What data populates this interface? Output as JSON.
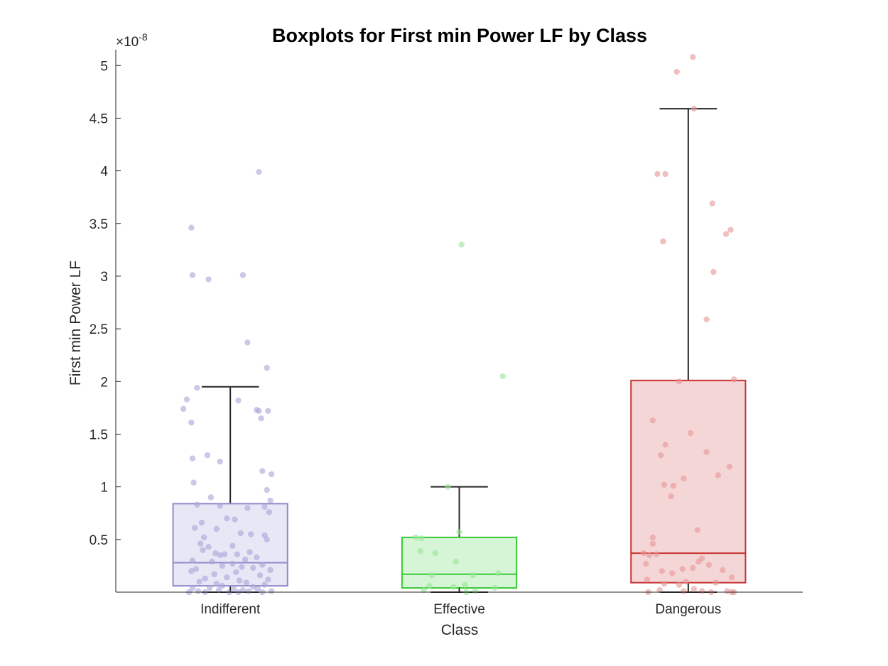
{
  "chart_data": {
    "type": "box",
    "title": "Boxplots for First min Power LF by Class",
    "xlabel": "Class",
    "ylabel": "First min Power LF",
    "y_exponent_prefix": "×10",
    "y_exponent": "-8",
    "ylim": [
      0,
      5.15
    ],
    "yticks": [
      {
        "value": 0.5,
        "label": "0.5"
      },
      {
        "value": 1,
        "label": "1"
      },
      {
        "value": 1.5,
        "label": "1.5"
      },
      {
        "value": 2,
        "label": "2"
      },
      {
        "value": 2.5,
        "label": "2.5"
      },
      {
        "value": 3,
        "label": "3"
      },
      {
        "value": 3.5,
        "label": "3.5"
      },
      {
        "value": 4,
        "label": "4"
      },
      {
        "value": 4.5,
        "label": "4.5"
      },
      {
        "value": 5,
        "label": "5"
      }
    ],
    "categories": [
      "Indifferent",
      "Effective",
      "Dangerous"
    ],
    "boxes": [
      {
        "category": "Indifferent",
        "color": "#8f8ac8",
        "fill": "#e8e7f5",
        "point_color": "#a9a4d8",
        "q1": 0.06,
        "median": 0.28,
        "q3": 0.84,
        "whisker_low": 0.0,
        "whisker_high": 1.95,
        "points": [
          3.99,
          3.46,
          3.01,
          3.01,
          2.97,
          2.37,
          2.13,
          1.94,
          1.82,
          1.83,
          1.74,
          1.73,
          1.72,
          1.72,
          1.65,
          1.61,
          1.3,
          1.27,
          1.24,
          1.15,
          1.12,
          1.04,
          0.97,
          0.9,
          0.87,
          0.83,
          0.82,
          0.81,
          0.8,
          0.76,
          0.7,
          0.69,
          0.66,
          0.61,
          0.6,
          0.56,
          0.55,
          0.54,
          0.52,
          0.5,
          0.46,
          0.44,
          0.43,
          0.4,
          0.38,
          0.37,
          0.36,
          0.36,
          0.35,
          0.33,
          0.31,
          0.3,
          0.29,
          0.27,
          0.26,
          0.25,
          0.24,
          0.23,
          0.22,
          0.21,
          0.2,
          0.19,
          0.17,
          0.16,
          0.14,
          0.13,
          0.12,
          0.11,
          0.1,
          0.09,
          0.08,
          0.07,
          0.06,
          0.05,
          0.04,
          0.04,
          0.03,
          0.03,
          0.02,
          0.02,
          0.01,
          0.01,
          0.01,
          0.0,
          0.0,
          0.0,
          0.0,
          0.0
        ],
        "point_x_offsets": [
          0.25,
          -0.34,
          -0.33,
          0.11,
          -0.19,
          0.15,
          0.32,
          -0.29,
          0.07,
          -0.38,
          -0.41,
          0.23,
          0.25,
          0.33,
          0.27,
          -0.34,
          -0.2,
          -0.33,
          -0.09,
          0.28,
          0.36,
          -0.32,
          0.32,
          -0.17,
          0.35,
          -0.29,
          -0.09,
          0.3,
          0.15,
          0.34,
          -0.03,
          0.04,
          -0.25,
          -0.31,
          -0.12,
          0.09,
          0.18,
          0.3,
          -0.23,
          0.32,
          -0.26,
          0.02,
          -0.19,
          -0.24,
          0.17,
          -0.13,
          -0.05,
          0.06,
          -0.09,
          0.23,
          0.13,
          -0.33,
          -0.16,
          0.02,
          0.28,
          -0.07,
          0.1,
          0.2,
          -0.3,
          0.35,
          -0.34,
          0.05,
          -0.14,
          0.26,
          -0.03,
          -0.22,
          0.33,
          0.08,
          -0.27,
          0.14,
          -0.12,
          0.3,
          -0.07,
          0.2,
          -0.33,
          -0.18,
          0.03,
          0.24,
          -0.1,
          0.11,
          -0.28,
          0.16,
          0.36,
          -0.22,
          -0.01,
          0.07,
          0.28,
          -0.36
        ]
      },
      {
        "category": "Effective",
        "color": "#38c838",
        "fill": "#d6f5d6",
        "point_color": "#96e696",
        "q1": 0.04,
        "median": 0.17,
        "q3": 0.52,
        "whisker_low": 0.0,
        "whisker_high": 1.0,
        "points": [
          3.3,
          2.05,
          1.0,
          0.57,
          0.52,
          0.51,
          0.39,
          0.37,
          0.29,
          0.18,
          0.16,
          0.16,
          0.07,
          0.06,
          0.05,
          0.04,
          0.02,
          0.01,
          0.0
        ],
        "point_x_offsets": [
          0.02,
          0.38,
          -0.1,
          0.0,
          -0.38,
          -0.33,
          -0.34,
          -0.21,
          -0.03,
          0.34,
          -0.24,
          0.12,
          0.05,
          -0.26,
          -0.05,
          0.31,
          -0.31,
          0.14,
          0.06
        ]
      },
      {
        "category": "Dangerous",
        "color": "#c83232",
        "fill": "#f5d6d6",
        "point_color": "#e69696",
        "q1": 0.09,
        "median": 0.37,
        "q3": 2.01,
        "whisker_low": 0.0,
        "whisker_high": 4.59,
        "points": [
          5.08,
          4.94,
          4.59,
          3.97,
          3.97,
          3.69,
          3.44,
          3.4,
          3.33,
          3.04,
          2.59,
          2.02,
          2.0,
          1.63,
          1.51,
          1.4,
          1.33,
          1.3,
          1.19,
          1.11,
          1.08,
          1.02,
          1.01,
          0.91,
          0.59,
          0.52,
          0.46,
          0.37,
          0.36,
          0.35,
          0.32,
          0.29,
          0.27,
          0.26,
          0.23,
          0.22,
          0.21,
          0.2,
          0.18,
          0.14,
          0.12,
          0.1,
          0.09,
          0.08,
          0.07,
          0.03,
          0.02,
          0.01,
          0.01,
          0.01,
          0.0,
          0.0,
          0.0,
          0.0
        ],
        "point_x_offsets": [
          0.04,
          -0.1,
          0.05,
          -0.27,
          -0.2,
          0.21,
          0.37,
          0.33,
          -0.22,
          0.22,
          0.16,
          0.4,
          -0.08,
          -0.31,
          0.02,
          -0.2,
          0.16,
          -0.24,
          0.36,
          0.26,
          -0.04,
          -0.21,
          -0.13,
          -0.15,
          0.08,
          -0.31,
          -0.31,
          -0.39,
          -0.28,
          -0.34,
          0.12,
          0.09,
          -0.37,
          0.18,
          0.04,
          -0.05,
          0.3,
          -0.23,
          -0.14,
          0.38,
          -0.36,
          -0.02,
          0.24,
          -0.21,
          -0.08,
          0.05,
          -0.25,
          0.34,
          0.12,
          -0.04,
          0.38,
          0.2,
          -0.35,
          0.4
        ]
      }
    ]
  }
}
